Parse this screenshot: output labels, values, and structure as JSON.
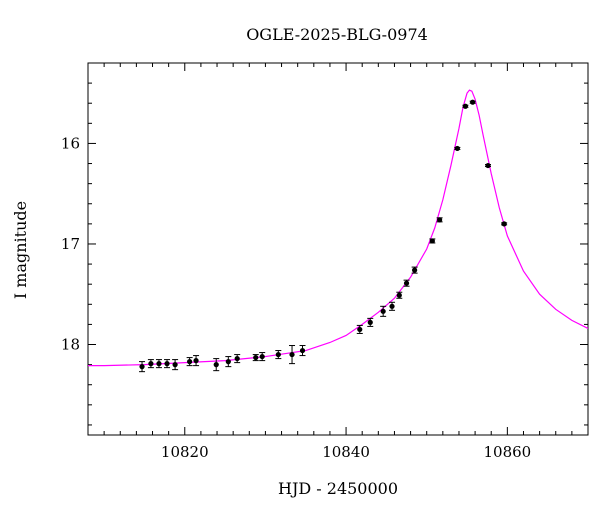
{
  "chart_data": {
    "type": "scatter",
    "title": "OGLE-2025-BLG-0974",
    "xlabel": "HJD - 2450000",
    "ylabel": "I magnitude",
    "xlim": [
      10808,
      10870
    ],
    "ylim": [
      18.9,
      15.2
    ],
    "y_inverted": true,
    "grid": false,
    "x_ticks_major": [
      10820,
      10840,
      10860
    ],
    "y_ticks_major": [
      16,
      17,
      18
    ],
    "x_tick_labels": [
      "10820",
      "10840",
      "10860"
    ],
    "y_tick_labels": [
      "16",
      "17",
      "18"
    ],
    "colors": {
      "model": "#ff00ff",
      "points": "#000000"
    },
    "series": [
      {
        "kind": "points_with_errorbars",
        "x": [
          10814.7,
          10815.8,
          10816.8,
          10817.8,
          10818.8,
          10820.6,
          10821.4,
          10823.9,
          10825.4,
          10826.5,
          10828.8,
          10829.6,
          10831.6,
          10833.3,
          10834.6,
          10841.7,
          10843.0,
          10844.6,
          10845.7,
          10846.6,
          10847.5,
          10848.5,
          10850.7,
          10851.6,
          10853.8,
          10854.8,
          10855.7,
          10857.6,
          10859.6
        ],
        "y": [
          18.22,
          18.19,
          18.19,
          18.19,
          18.2,
          18.17,
          18.16,
          18.2,
          18.17,
          18.14,
          18.13,
          18.12,
          18.1,
          18.1,
          18.06,
          17.85,
          17.78,
          17.67,
          17.62,
          17.51,
          17.39,
          17.26,
          16.97,
          16.76,
          16.05,
          15.63,
          15.59,
          16.22,
          16.8
        ],
        "yerr": [
          0.05,
          0.04,
          0.04,
          0.04,
          0.05,
          0.04,
          0.05,
          0.06,
          0.05,
          0.04,
          0.03,
          0.04,
          0.04,
          0.09,
          0.05,
          0.04,
          0.04,
          0.05,
          0.04,
          0.03,
          0.03,
          0.03,
          0.02,
          0.02,
          0.01,
          0.01,
          0.01,
          0.01,
          0.01
        ]
      },
      {
        "kind": "model_curve",
        "x": [
          10808,
          10810,
          10815,
          10820,
          10825,
          10830,
          10835,
          10838,
          10840,
          10842,
          10844,
          10846,
          10848,
          10850,
          10851,
          10852,
          10853,
          10854,
          10854.5,
          10855,
          10855.3,
          10855.6,
          10856,
          10856.5,
          10857,
          10858,
          10859,
          10860,
          10862,
          10864,
          10866,
          10868,
          10870
        ],
        "y": [
          18.21,
          18.21,
          18.2,
          18.18,
          18.16,
          18.12,
          18.06,
          17.98,
          17.91,
          17.8,
          17.68,
          17.54,
          17.33,
          17.05,
          16.84,
          16.56,
          16.22,
          15.85,
          15.64,
          15.5,
          15.47,
          15.48,
          15.56,
          15.72,
          15.92,
          16.3,
          16.64,
          16.92,
          17.27,
          17.5,
          17.65,
          17.76,
          17.84
        ]
      }
    ]
  }
}
